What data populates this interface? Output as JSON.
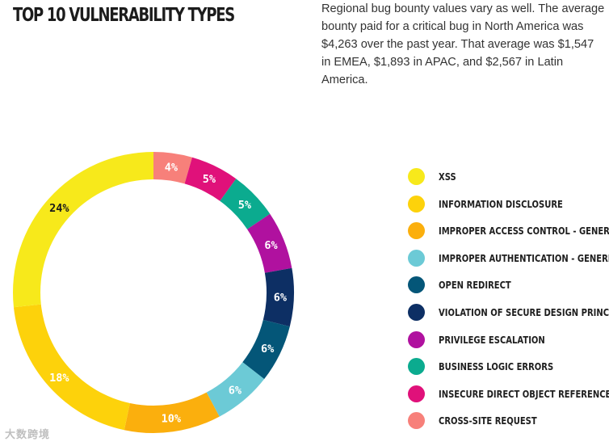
{
  "header": {
    "title": "TOP 10 VULNERABILITY TYPES",
    "intro": "Regional bug bounty values vary as well. The average bounty paid for a critical bug in North America was $4,263 over the past year. That average was $1,547 in EMEA, $1,893 in APAC, and $2,567 in Latin America."
  },
  "watermark": "大数跨境",
  "chart_data": {
    "type": "pie",
    "title": "TOP 10 VULNERABILITY TYPES",
    "donut": true,
    "categories": [
      "XSS",
      "INFORMATION DISCLOSURE",
      "IMPROPER ACCESS CONTROL - GENERIC",
      "IMPROPER AUTHENTICATION - GENERIC",
      "OPEN REDIRECT",
      "VIOLATION OF SECURE DESIGN PRINCIPLES",
      "PRIVILEGE ESCALATION",
      "BUSINESS LOGIC ERRORS",
      "INSECURE DIRECT OBJECT REFERENCE",
      "CROSS-SITE REQUEST"
    ],
    "values": [
      24,
      18,
      10,
      6,
      6,
      6,
      6,
      5,
      5,
      4
    ],
    "labels": [
      "24%",
      "18%",
      "10%",
      "6%",
      "6%",
      "6%",
      "6%",
      "5%",
      "5%",
      "4%"
    ],
    "colors": [
      "#f7e91b",
      "#fdd20b",
      "#fbaf0d",
      "#6ccad6",
      "#045678",
      "#0d2f64",
      "#b0119f",
      "#0bab8f",
      "#e0117a",
      "#f7807a"
    ],
    "label_colors": [
      "#1a1a1a",
      "#ffffff",
      "#ffffff",
      "#ffffff",
      "#ffffff",
      "#ffffff",
      "#ffffff",
      "#ffffff",
      "#ffffff",
      "#ffffff"
    ],
    "legend_position": "right"
  }
}
